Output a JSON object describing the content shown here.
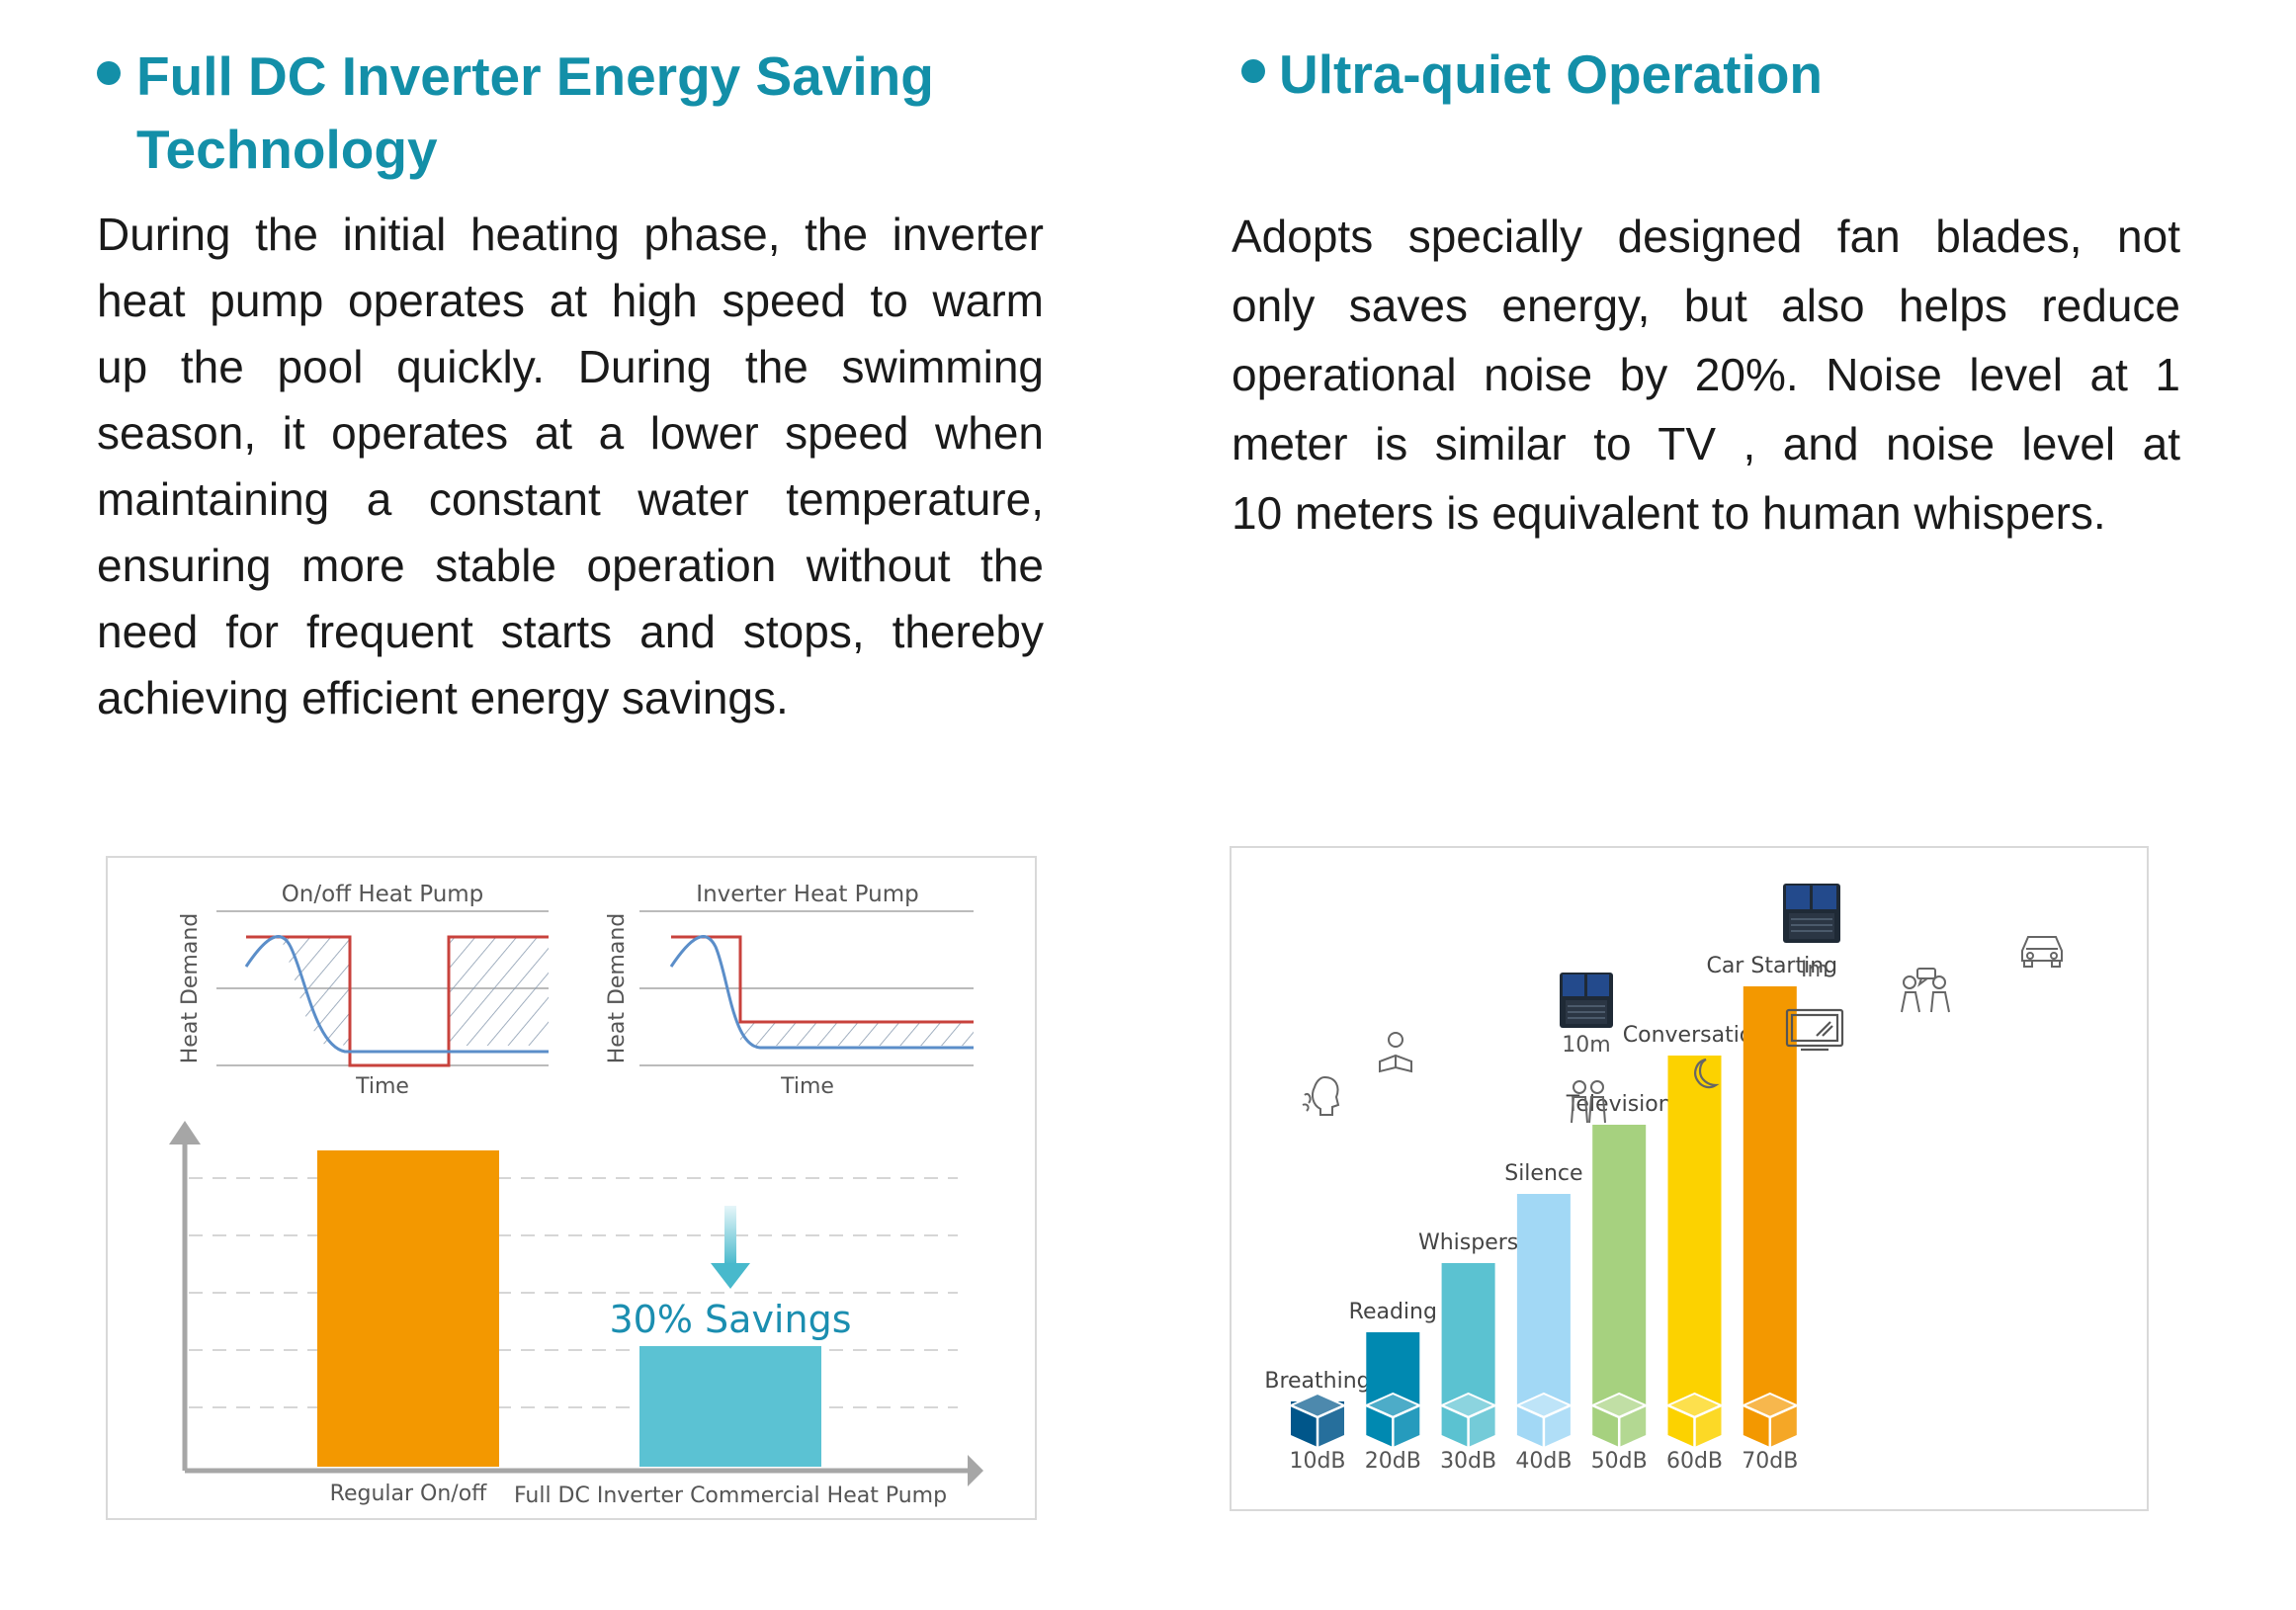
{
  "left": {
    "heading_line1": "Full DC Inverter Energy Saving",
    "heading_line2": "Technology",
    "paragraph_lines": [
      "During the initial heating phase,  the inverter",
      "heat pump operates at high speed to warm",
      "up the pool quickly.  During the swimming",
      "season,  it operates at a lower speed when",
      "maintaining a constant water temperature,",
      "ensuring more stable operation without the",
      "need for frequent starts and stops,  thereby",
      "achieving efficient energy savings."
    ]
  },
  "right": {
    "heading": "Ultra-quiet Operation",
    "paragraph_lines": [
      "Adopts specially designed fan blades,  not",
      "only saves energy, but also helps reduce",
      "operational noise by 20%.  Noise level at 1",
      "meter is similar to TV ,  and noise level at",
      "10 meters is equivalent to human whispers."
    ]
  },
  "savings_panel": {
    "onoff_title": "On/off Heat Pump",
    "inverter_title": "Inverter Heat Pump",
    "y_label": "Heat Demand",
    "x_label": "Time",
    "savings_label": "30% Savings",
    "bar_regular_label": "Regular On/off",
    "bar_inverter_label": "Full DC Inverter Commercial Heat Pump",
    "colors": {
      "regular": "#f39800",
      "inverter": "#5bc2d3",
      "curve": "#5b8ec9",
      "setpoint": "#c8423c"
    }
  },
  "chart_data": {
    "type": "bar",
    "categories": [
      "10dB",
      "20dB",
      "30dB",
      "40dB",
      "50dB",
      "60dB",
      "70dB"
    ],
    "values": [
      10,
      20,
      30,
      40,
      50,
      60,
      70
    ],
    "bar_labels": [
      "Breathing",
      "Reading",
      "Whispers",
      "Silence",
      "Television",
      "Conversation",
      "Car Starting"
    ],
    "colors": [
      "#00568a",
      "#0089b1",
      "#5bc2d1",
      "#a2d8f5",
      "#a6d17f",
      "#fcd200",
      "#f39800"
    ],
    "unit_labels": {
      "ten_meter": "10m",
      "one_meter": "Im"
    },
    "ylim": [
      0,
      80
    ],
    "grid": false,
    "legend": "none",
    "icons": [
      "breathing-icon",
      "reading-icon",
      "whispers-icon",
      "moon-icon",
      "television-icon",
      "conversation-icon",
      "car-icon"
    ]
  }
}
